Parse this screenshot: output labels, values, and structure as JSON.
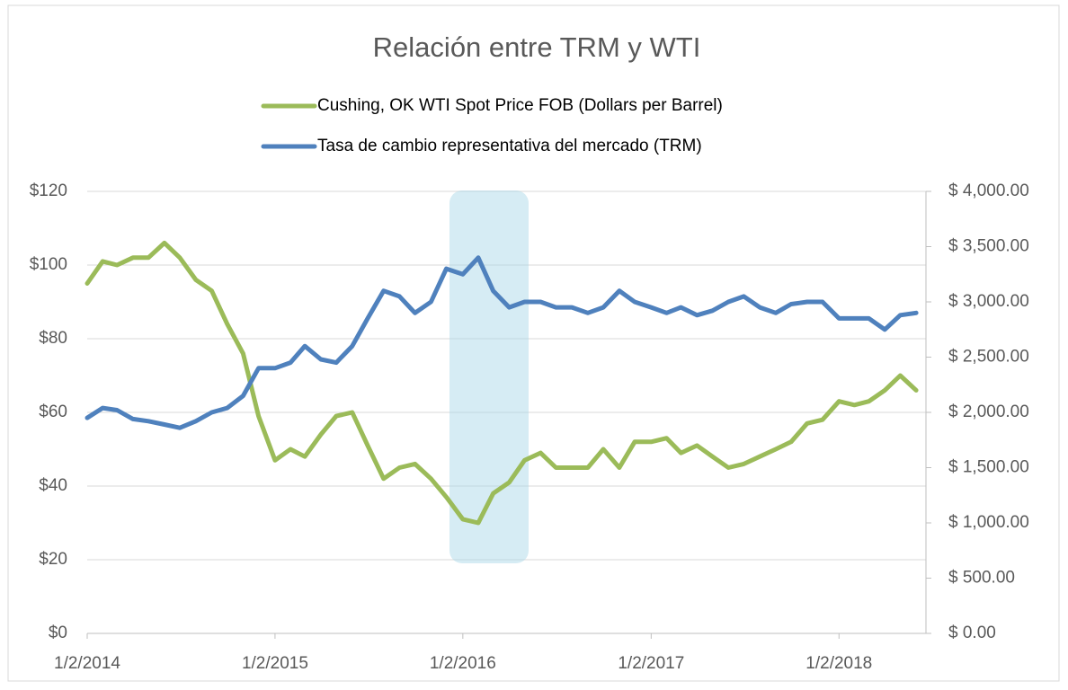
{
  "chart_data": {
    "type": "line",
    "title": "Relación entre TRM y WTI",
    "x": [
      "1/2/2014",
      "2/1/2014",
      "3/1/2014",
      "4/1/2014",
      "5/1/2014",
      "6/1/2014",
      "7/1/2014",
      "8/1/2014",
      "9/1/2014",
      "10/1/2014",
      "11/1/2014",
      "12/1/2014",
      "1/2/2015",
      "2/1/2015",
      "3/1/2015",
      "4/1/2015",
      "5/1/2015",
      "6/1/2015",
      "7/1/2015",
      "8/1/2015",
      "9/1/2015",
      "10/1/2015",
      "11/1/2015",
      "12/1/2015",
      "1/2/2016",
      "2/1/2016",
      "3/1/2016",
      "4/1/2016",
      "5/1/2016",
      "6/1/2016",
      "7/1/2016",
      "8/1/2016",
      "9/1/2016",
      "10/1/2016",
      "11/1/2016",
      "12/1/2016",
      "1/2/2017",
      "2/1/2017",
      "3/1/2017",
      "4/1/2017",
      "5/1/2017",
      "6/1/2017",
      "7/1/2017",
      "8/1/2017",
      "9/1/2017",
      "10/1/2017",
      "11/1/2017",
      "12/1/2017",
      "1/2/2018",
      "2/1/2018",
      "3/1/2018",
      "4/1/2018",
      "5/1/2018",
      "6/1/2018"
    ],
    "series": [
      {
        "name": "Cushing, OK WTI Spot Price FOB (Dollars per Barrel)",
        "color": "#9bbb59",
        "values": [
          95,
          101,
          100,
          102,
          102,
          106,
          102,
          96,
          93,
          84,
          76,
          59,
          47,
          50,
          48,
          54,
          59,
          60,
          51,
          42,
          45,
          46,
          42,
          37,
          31,
          30,
          38,
          41,
          47,
          49,
          45,
          45,
          45,
          50,
          45,
          52,
          52,
          53,
          49,
          51,
          48,
          45,
          46,
          48,
          50,
          52,
          57,
          58,
          63,
          62,
          63,
          66,
          70,
          66
        ]
      },
      {
        "name": "Tasa de cambio representativa del mercado (TRM)",
        "color": "#4f81bd",
        "axis": "y2",
        "values": [
          1950,
          2040,
          2020,
          1940,
          1920,
          1890,
          1860,
          1920,
          2000,
          2040,
          2150,
          2400,
          2400,
          2450,
          2600,
          2480,
          2450,
          2600,
          2850,
          3100,
          3050,
          2900,
          3000,
          3300,
          3250,
          3400,
          3100,
          2950,
          3000,
          3000,
          2950,
          2950,
          2900,
          2950,
          3100,
          3000,
          2950,
          2900,
          2950,
          2880,
          2920,
          3000,
          3050,
          2950,
          2900,
          2980,
          3000,
          3000,
          2850,
          2850,
          2850,
          2750,
          2880,
          2900
        ]
      }
    ],
    "xlim": [
      "1/2/2014",
      "6/20/2018"
    ],
    "xticks": [
      "1/2/2014",
      "1/2/2015",
      "1/2/2016",
      "1/2/2017",
      "1/2/2018"
    ],
    "ylim": [
      0,
      120
    ],
    "yticks": [
      {
        "value": 0,
        "label": "$0"
      },
      {
        "value": 20,
        "label": "$20"
      },
      {
        "value": 40,
        "label": "$40"
      },
      {
        "value": 60,
        "label": "$60"
      },
      {
        "value": 80,
        "label": "$80"
      },
      {
        "value": 100,
        "label": "$100"
      },
      {
        "value": 120,
        "label": "$120"
      }
    ],
    "y2lim": [
      0,
      4000
    ],
    "y2ticks": [
      {
        "value": 0,
        "label": "$ 0.00"
      },
      {
        "value": 500,
        "label": "$ 500.00"
      },
      {
        "value": 1000,
        "label": "$ 1,000.00"
      },
      {
        "value": 1500,
        "label": "$ 1,500.00"
      },
      {
        "value": 2000,
        "label": "$ 2,000.00"
      },
      {
        "value": 2500,
        "label": "$ 2,500.00"
      },
      {
        "value": 3000,
        "label": "$ 3,000.00"
      },
      {
        "value": 3500,
        "label": "$ 3,500.00"
      },
      {
        "value": 4000,
        "label": "$ 4,000.00"
      }
    ],
    "grid": true,
    "legend": "top"
  }
}
